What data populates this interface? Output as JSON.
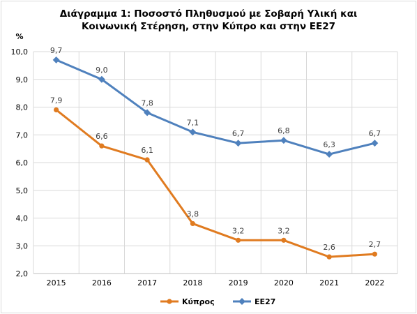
{
  "chart_data": {
    "type": "line",
    "title_lines": [
      "Διάγραμμα 1: Ποσοστό Πληθυσμού με Σοβαρή Υλική και",
      "Κοινωνική Στέρηση,  στην Κύπρο και στην ΕΕ27"
    ],
    "ylabel": "%",
    "xlabel": "",
    "categories": [
      "2015",
      "2016",
      "2017",
      "2018",
      "2019",
      "2020",
      "2021",
      "2022"
    ],
    "ylim": [
      2.0,
      10.0
    ],
    "yticks": [
      {
        "value": 2.0,
        "label": "2,0"
      },
      {
        "value": 3.0,
        "label": "3,0"
      },
      {
        "value": 4.0,
        "label": "4,0"
      },
      {
        "value": 5.0,
        "label": "5,0"
      },
      {
        "value": 6.0,
        "label": "6,0"
      },
      {
        "value": 7.0,
        "label": "7,0"
      },
      {
        "value": 8.0,
        "label": "8,0"
      },
      {
        "value": 9.0,
        "label": "9,0"
      },
      {
        "value": 10.0,
        "label": "10,0"
      }
    ],
    "grid": true,
    "legend_position": "bottom",
    "series": [
      {
        "name": "Κύπρος",
        "color": "#e07b20",
        "values": [
          7.9,
          6.6,
          6.1,
          3.8,
          3.2,
          3.2,
          2.6,
          2.7
        ],
        "labels": [
          "7,9",
          "6,6",
          "6,1",
          "3,8",
          "3,2",
          "3,2",
          "2,6",
          "2,7"
        ]
      },
      {
        "name": "ΕΕ27",
        "color": "#4f81bd",
        "values": [
          9.7,
          9.0,
          7.8,
          7.1,
          6.7,
          6.8,
          6.3,
          6.7
        ],
        "labels": [
          "9,7",
          "9,0",
          "7,8",
          "7,1",
          "6,7",
          "6,8",
          "6,3",
          "6,7"
        ]
      }
    ]
  }
}
